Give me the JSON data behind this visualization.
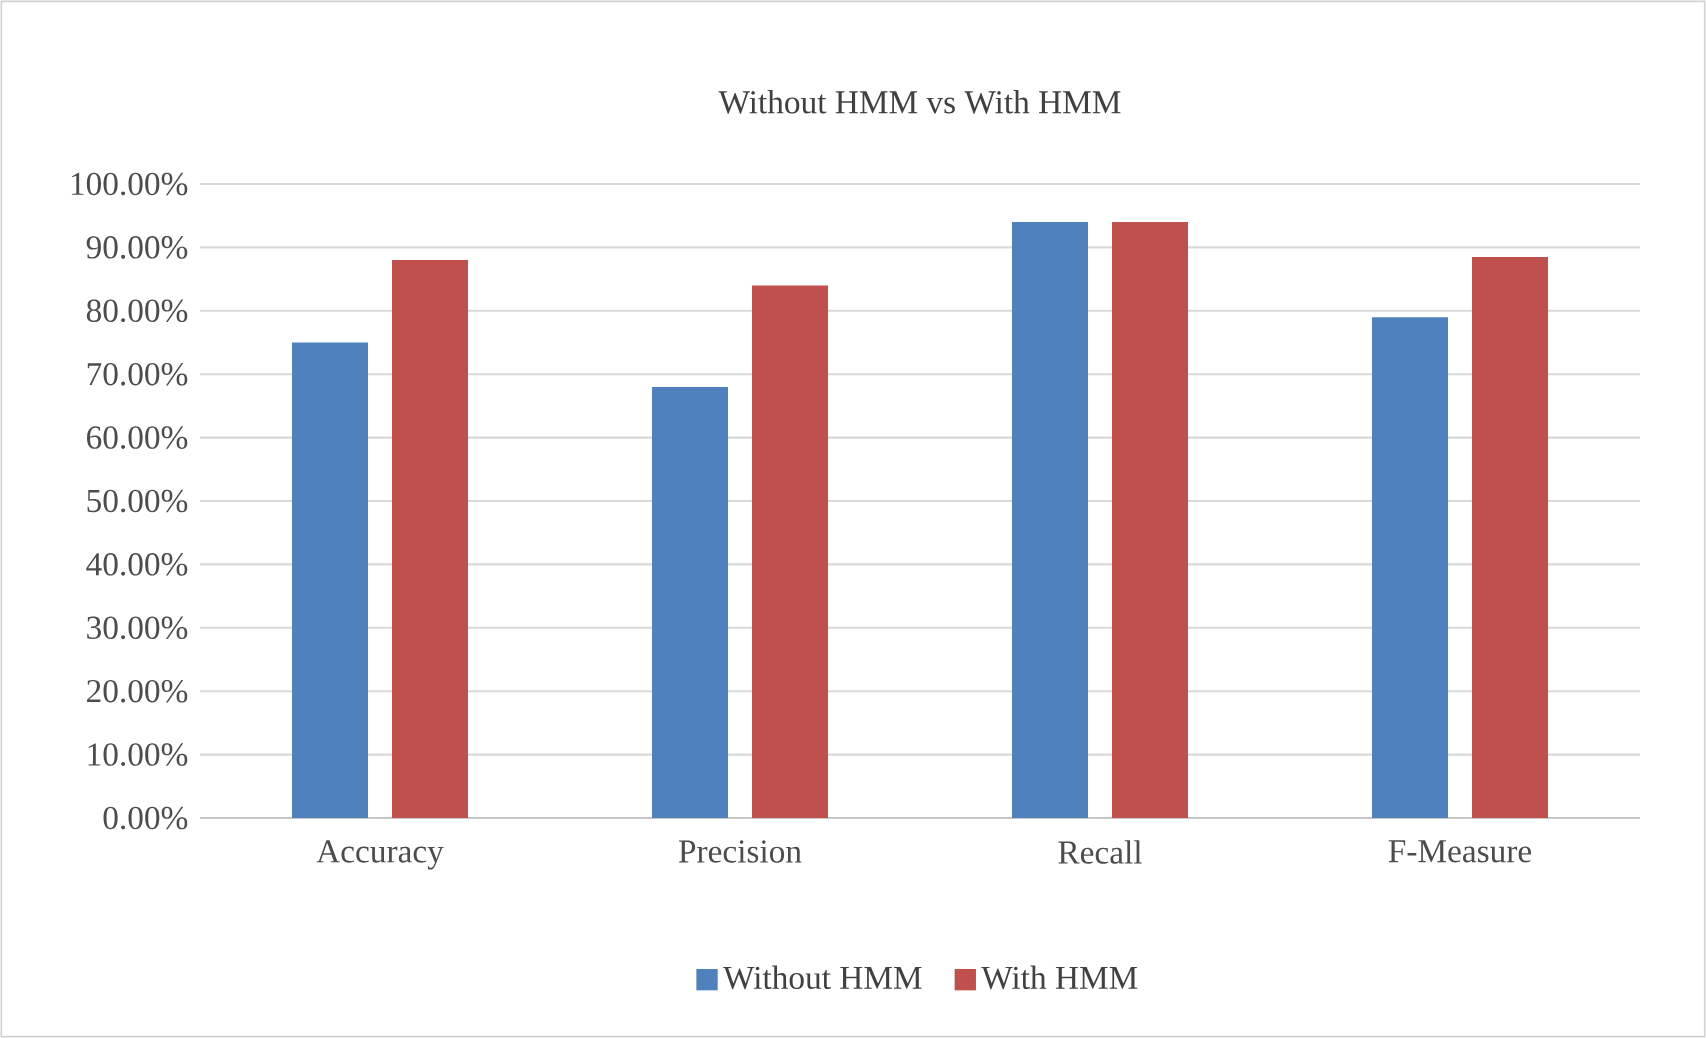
{
  "chart_data": {
    "type": "bar",
    "title": "Without HMM vs With HMM",
    "categories": [
      "Accuracy",
      "Precision",
      "Recall",
      "F-Measure"
    ],
    "series": [
      {
        "name": "Without HMM",
        "color": "#4f81bd",
        "values": [
          75,
          68,
          94,
          79
        ]
      },
      {
        "name": "With HMM",
        "color": "#c0504d",
        "values": [
          88,
          84,
          94,
          88.5
        ]
      }
    ],
    "ylim": [
      0,
      100
    ],
    "yticks": [
      {
        "value": 0,
        "label": "0.00%"
      },
      {
        "value": 10,
        "label": "10.00%"
      },
      {
        "value": 20,
        "label": "20.00%"
      },
      {
        "value": 30,
        "label": "30.00%"
      },
      {
        "value": 40,
        "label": "40.00%"
      },
      {
        "value": 50,
        "label": "50.00%"
      },
      {
        "value": 60,
        "label": "60.00%"
      },
      {
        "value": 70,
        "label": "70.00%"
      },
      {
        "value": 80,
        "label": "80.00%"
      },
      {
        "value": 90,
        "label": "90.00%"
      },
      {
        "value": 100,
        "label": "100.00%"
      }
    ],
    "grid": "y",
    "legend": "bottom"
  }
}
